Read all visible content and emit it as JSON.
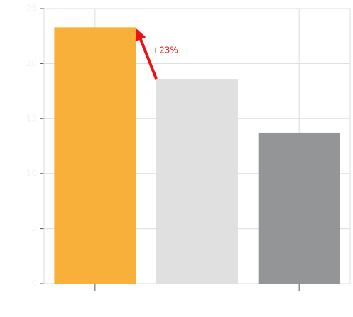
{
  "chart_data": {
    "type": "bar",
    "categories": [
      null,
      null,
      null
    ],
    "values": [
      23.3,
      18.6,
      13.7
    ],
    "colors": [
      "#f9b03b",
      "#dfe0df",
      "#949596"
    ],
    "annotation": "+23%",
    "annotation_color": "#ee1111",
    "ylim": [
      0,
      25
    ],
    "yticks": [
      0,
      5,
      10,
      15,
      20,
      25
    ],
    "grid": true
  }
}
